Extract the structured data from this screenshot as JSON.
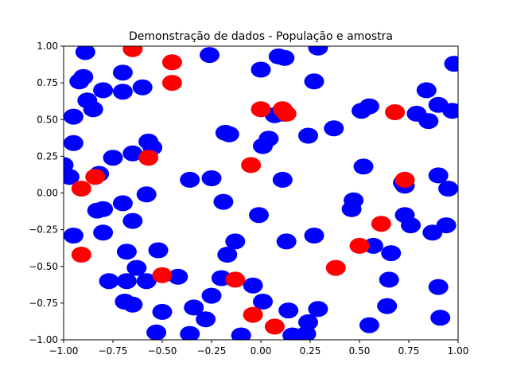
{
  "chart_data": {
    "type": "scatter",
    "title": "Demonstração de dados - População e amostra",
    "xlabel": "",
    "ylabel": "",
    "xlim": [
      -1.0,
      1.0
    ],
    "ylim": [
      -1.0,
      1.0
    ],
    "grid": false,
    "xticks": [
      "−1.00",
      "−0.75",
      "−0.50",
      "−0.25",
      "0.00",
      "0.25",
      "0.50",
      "0.75",
      "1.00"
    ],
    "yticks": [
      "−1.00",
      "−0.75",
      "−0.50",
      "−0.25",
      "0.00",
      "0.25",
      "0.50",
      "0.75",
      "1.00"
    ],
    "series": [
      {
        "color": "#0000ff",
        "points": [
          [
            -0.89,
            0.96
          ],
          [
            -0.9,
            0.79
          ],
          [
            -0.92,
            0.76
          ],
          [
            -0.8,
            0.7
          ],
          [
            -0.7,
            0.82
          ],
          [
            -0.7,
            0.69
          ],
          [
            -0.6,
            0.72
          ],
          [
            -0.88,
            0.63
          ],
          [
            -0.85,
            0.57
          ],
          [
            -0.95,
            0.52
          ],
          [
            -0.95,
            0.34
          ],
          [
            -1.0,
            0.19
          ],
          [
            -0.97,
            0.11
          ],
          [
            -0.82,
            0.13
          ],
          [
            -0.75,
            0.24
          ],
          [
            -0.65,
            0.27
          ],
          [
            -0.57,
            0.35
          ],
          [
            -0.55,
            0.31
          ],
          [
            -0.58,
            -0.01
          ],
          [
            -0.7,
            -0.07
          ],
          [
            -0.8,
            -0.11
          ],
          [
            -0.83,
            -0.12
          ],
          [
            -0.65,
            -0.19
          ],
          [
            -0.8,
            -0.27
          ],
          [
            -0.95,
            -0.29
          ],
          [
            -0.68,
            -0.4
          ],
          [
            -0.63,
            -0.51
          ],
          [
            -0.77,
            -0.6
          ],
          [
            -0.68,
            -0.6
          ],
          [
            -0.58,
            -0.6
          ],
          [
            -0.52,
            -0.39
          ],
          [
            -0.42,
            -0.57
          ],
          [
            -0.69,
            -0.74
          ],
          [
            -0.65,
            -0.76
          ],
          [
            -0.5,
            -0.81
          ],
          [
            -0.53,
            -0.95
          ],
          [
            -0.36,
            -0.96
          ],
          [
            -0.34,
            -0.78
          ],
          [
            -0.28,
            -0.86
          ],
          [
            -0.25,
            -0.7
          ],
          [
            -0.2,
            -0.58
          ],
          [
            -0.17,
            -0.42
          ],
          [
            -0.13,
            -0.33
          ],
          [
            -0.19,
            -0.06
          ],
          [
            -0.25,
            0.1
          ],
          [
            -0.36,
            0.09
          ],
          [
            -0.18,
            0.41
          ],
          [
            -0.16,
            0.4
          ],
          [
            0.01,
            0.32
          ],
          [
            0.04,
            0.37
          ],
          [
            0.07,
            0.53
          ],
          [
            0.12,
            0.54
          ],
          [
            0.11,
            0.09
          ],
          [
            -0.01,
            -0.15
          ],
          [
            0.13,
            -0.33
          ],
          [
            0.27,
            -0.29
          ],
          [
            0.24,
            0.39
          ],
          [
            0.27,
            0.76
          ],
          [
            0.29,
            0.99
          ],
          [
            0.09,
            0.93
          ],
          [
            0.12,
            0.92
          ],
          [
            0.0,
            0.84
          ],
          [
            -0.26,
            0.94
          ],
          [
            0.37,
            0.44
          ],
          [
            0.51,
            0.56
          ],
          [
            0.55,
            0.59
          ],
          [
            0.52,
            0.18
          ],
          [
            0.47,
            -0.05
          ],
          [
            0.46,
            -0.11
          ],
          [
            0.57,
            -0.36
          ],
          [
            0.66,
            -0.41
          ],
          [
            0.65,
            -0.59
          ],
          [
            0.64,
            -0.77
          ],
          [
            0.55,
            -0.9
          ],
          [
            0.72,
            0.07
          ],
          [
            0.73,
            0.05
          ],
          [
            0.73,
            -0.15
          ],
          [
            0.76,
            -0.22
          ],
          [
            0.79,
            0.54
          ],
          [
            0.84,
            0.7
          ],
          [
            0.85,
            0.49
          ],
          [
            0.9,
            0.6
          ],
          [
            0.9,
            0.12
          ],
          [
            0.95,
            0.03
          ],
          [
            0.97,
            0.56
          ],
          [
            0.98,
            0.88
          ],
          [
            0.94,
            -0.22
          ],
          [
            0.87,
            -0.27
          ],
          [
            0.9,
            -0.64
          ],
          [
            0.91,
            -0.85
          ],
          [
            0.29,
            -0.79
          ],
          [
            0.24,
            -0.88
          ],
          [
            0.23,
            -0.96
          ],
          [
            0.16,
            -0.97
          ],
          [
            0.14,
            -0.8
          ],
          [
            0.01,
            -0.74
          ],
          [
            -0.04,
            -0.63
          ],
          [
            -0.1,
            -0.97
          ]
        ]
      },
      {
        "color": "#ff0000",
        "points": [
          [
            -0.65,
            0.98
          ],
          [
            -0.45,
            0.89
          ],
          [
            -0.45,
            0.75
          ],
          [
            -0.57,
            0.24
          ],
          [
            -0.84,
            0.11
          ],
          [
            -0.91,
            0.03
          ],
          [
            -0.91,
            -0.42
          ],
          [
            -0.5,
            -0.56
          ],
          [
            -0.13,
            -0.59
          ],
          [
            -0.04,
            -0.83
          ],
          [
            0.07,
            -0.91
          ],
          [
            -0.05,
            0.19
          ],
          [
            0.0,
            0.57
          ],
          [
            0.11,
            0.57
          ],
          [
            0.13,
            0.54
          ],
          [
            0.38,
            -0.51
          ],
          [
            0.5,
            -0.36
          ],
          [
            0.61,
            -0.21
          ],
          [
            0.68,
            0.55
          ],
          [
            0.73,
            0.09
          ]
        ]
      }
    ]
  }
}
